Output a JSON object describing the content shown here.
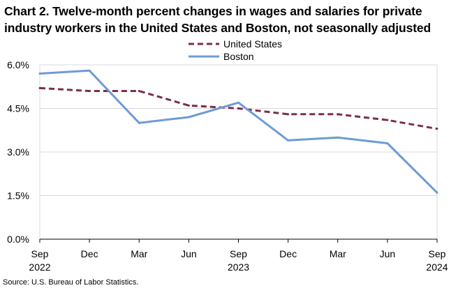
{
  "chart_data": {
    "type": "line",
    "title": "Chart 2. Twelve-month percent changes in wages and salaries for private industry workers in the United States and Boston, not seasonally adjusted",
    "categories": [
      "Sep\n2022",
      "Dec",
      "Mar",
      "Jun",
      "Sep\n2023",
      "Dec",
      "Mar",
      "Jun",
      "Sep\n2024"
    ],
    "yticks": [
      "0.0%",
      "1.5%",
      "3.0%",
      "4.5%",
      "6.0%"
    ],
    "ylim": [
      0,
      6
    ],
    "grid": true,
    "legend_position": "top-center",
    "series": [
      {
        "name": "United States",
        "color": "#7b2c4e",
        "dash": "dashed",
        "values": [
          5.2,
          5.1,
          5.1,
          4.6,
          4.5,
          4.3,
          4.3,
          4.1,
          3.8
        ]
      },
      {
        "name": "Boston",
        "color": "#6f9ad6",
        "dash": "solid",
        "values": [
          5.7,
          5.8,
          4.0,
          4.2,
          4.7,
          3.4,
          3.5,
          3.3,
          1.6
        ]
      }
    ],
    "xlabel": "",
    "ylabel": ""
  },
  "source": "Source: U.S. Bureau of Labor Statistics."
}
